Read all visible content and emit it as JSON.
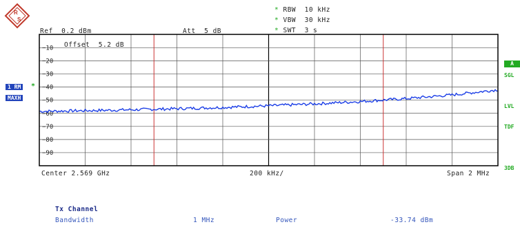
{
  "logo": {
    "letters": "R&S"
  },
  "header": {
    "rbw": {
      "label": "RBW",
      "value": "10 kHz"
    },
    "vbw": {
      "label": "VBW",
      "value": "30 kHz"
    },
    "swt": {
      "label": "SWT",
      "value": "3 s"
    },
    "ref": {
      "label": "Ref",
      "value": "0.2 dBm"
    },
    "att": {
      "label": "Att",
      "value": "5 dB"
    },
    "offset": {
      "label": "Offset",
      "value": "5.2 dB"
    }
  },
  "left": {
    "trace_label": "1 RM",
    "detector": "MAXH"
  },
  "right": {
    "a": "A",
    "sgl": "SGL",
    "lvl": "LVL",
    "tdf": "TDF",
    "db3": "3DB"
  },
  "footer": {
    "center": "Center 2.569 GHz",
    "div": "200 kHz/",
    "span": "Span 2 MHz"
  },
  "results": {
    "title": "Tx Channel",
    "bw_label": "Bandwidth",
    "bw_value": "1 MHz",
    "power_label": "Power",
    "power_value": "-33.74 dBm"
  },
  "colors": {
    "trace": "#1a3de6",
    "markers": "#cc3333",
    "softkey": "#2244bb",
    "status": "#22aa22"
  },
  "chart_data": {
    "type": "line",
    "xlabel": "",
    "ylabel": "",
    "x_center_ghz": 2.569,
    "x_span_mhz": 2,
    "ylim": [
      -100,
      0.2
    ],
    "yticks": [
      "-10",
      "-20",
      "-30",
      "-40",
      "-50",
      "-60",
      "-70",
      "-80",
      "-90"
    ],
    "vertical_lines_mhz": [
      -0.5,
      0.5
    ],
    "series": [
      {
        "name": "",
        "x_mhz": [
          -1.0,
          -0.8,
          -0.6,
          -0.4,
          -0.2,
          0.0,
          0.2,
          0.4,
          0.6,
          0.8,
          1.0
        ],
        "y_dbm": [
          -58.5,
          -58.0,
          -57.3,
          -56.5,
          -55.5,
          -54.3,
          -52.8,
          -51.0,
          -48.8,
          -46.0,
          -42.0
        ]
      }
    ]
  }
}
